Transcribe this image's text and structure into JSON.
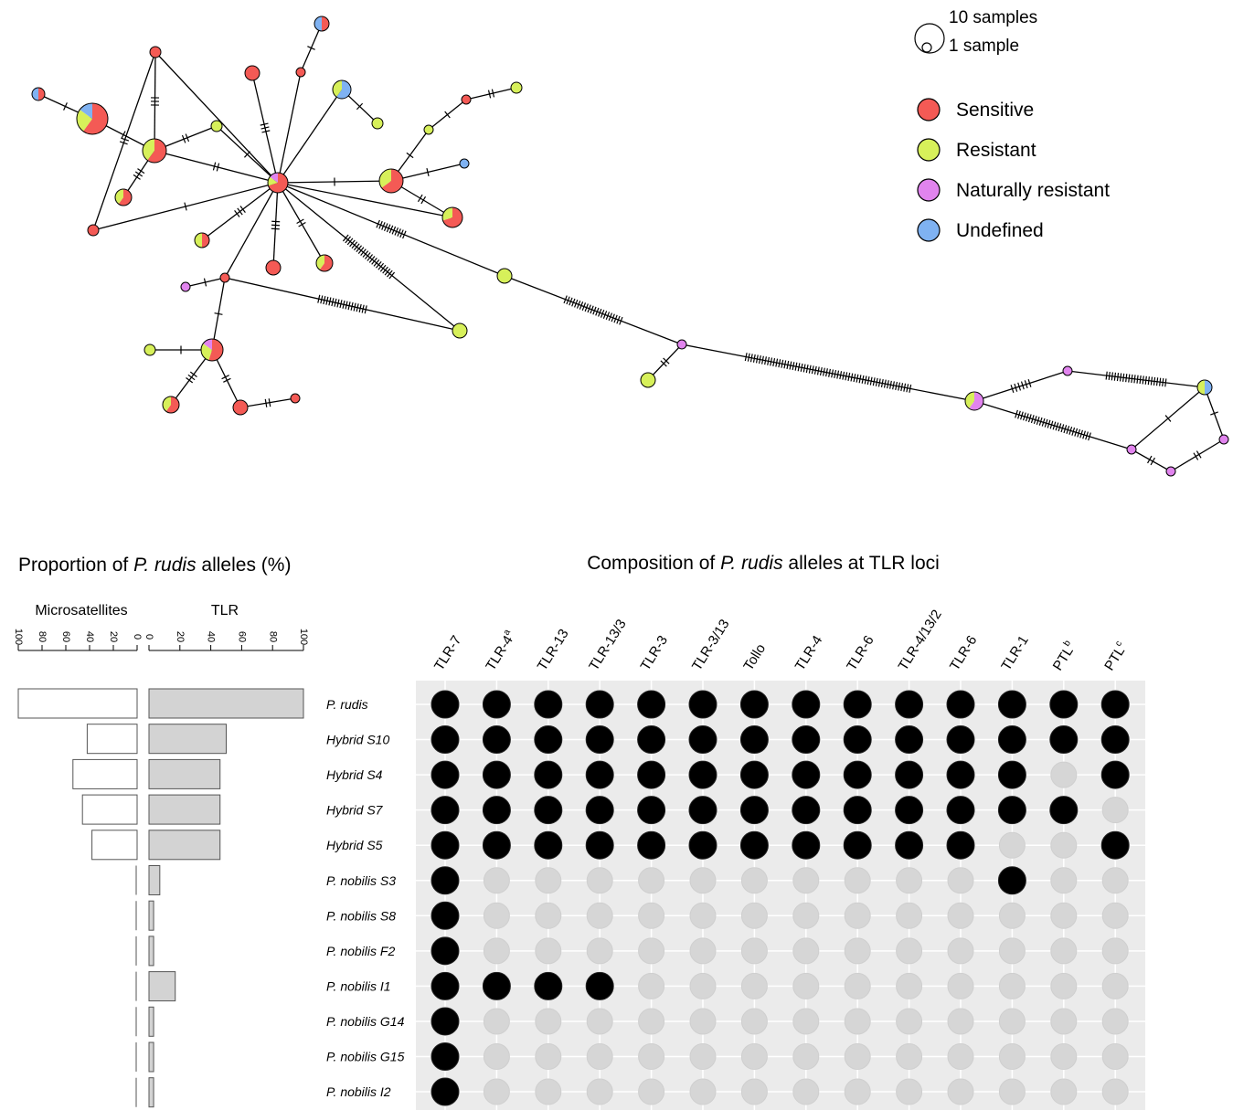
{
  "network": {
    "legend_size": {
      "big": "10 samples",
      "small": "1 sample"
    },
    "legend_items": [
      {
        "label": "Sensitive",
        "color": "#f45a55"
      },
      {
        "label": "Resistant",
        "color": "#d7f05a"
      },
      {
        "label": "Naturally resistant",
        "color": "#e184ee"
      },
      {
        "label": "Undefined",
        "color": "#7fb2f2"
      }
    ]
  },
  "chart_data": [
    {
      "type": "bar",
      "title": "Proportion of P. rudis alleles (%)",
      "title_prefix": "Proportion of ",
      "title_species": "P. rudis",
      "title_suffix": " alleles (%)",
      "categories": [
        "P. rudis",
        "Hybrid S10",
        "Hybrid S4",
        "Hybrid S7",
        "Hybrid S5",
        "P. nobilis S3",
        "P. nobilis S8",
        "P. nobilis F2",
        "P. nobilis I1",
        "P. nobilis G14",
        "P. nobilis G15",
        "P. nobilis I2"
      ],
      "panels": [
        {
          "name": "Microsatellites",
          "direction": "reversed",
          "ticks": [
            "100",
            "80",
            "60",
            "40",
            "20",
            "0"
          ],
          "values": [
            100,
            42,
            54,
            46,
            38,
            0,
            0,
            0,
            0,
            0,
            0,
            0
          ]
        },
        {
          "name": "TLR",
          "ticks": [
            "0",
            "20",
            "40",
            "60",
            "80",
            "100"
          ],
          "values": [
            100,
            50,
            46,
            46,
            46,
            7,
            3,
            3,
            17,
            3,
            3,
            3
          ]
        }
      ],
      "ylim": [
        0,
        100
      ]
    },
    {
      "type": "heatmap",
      "title": "Composition of P. rudis alleles at TLR loci",
      "title_prefix": "Composition of ",
      "title_species": "P. rudis",
      "title_suffix": " alleles at TLR loci",
      "columns": [
        {
          "label": "TLR-7",
          "sup": ""
        },
        {
          "label": "TLR-4",
          "sup": "a"
        },
        {
          "label": "TLR-13",
          "sup": ""
        },
        {
          "label": "TLR-13/3",
          "sup": ""
        },
        {
          "label": "TLR-3",
          "sup": ""
        },
        {
          "label": "TLR-3/13",
          "sup": ""
        },
        {
          "label": "Tollo",
          "sup": ""
        },
        {
          "label": "TLR-4",
          "sup": ""
        },
        {
          "label": "TLR-6",
          "sup": ""
        },
        {
          "label": "TLR-4/13/2",
          "sup": ""
        },
        {
          "label": "TLR-6",
          "sup": ""
        },
        {
          "label": "TLR-1",
          "sup": ""
        },
        {
          "label": "PTL",
          "sup": "b"
        },
        {
          "label": "PTL",
          "sup": "c"
        }
      ],
      "rows": [
        "P. rudis",
        "Hybrid S10",
        "Hybrid S4",
        "Hybrid S7",
        "Hybrid S5",
        "P. nobilis S3",
        "P. nobilis S8",
        "P. nobilis F2",
        "P. nobilis I1",
        "P. nobilis G14",
        "P. nobilis G15",
        "P. nobilis I2"
      ],
      "present": [
        [
          1,
          1,
          1,
          1,
          1,
          1,
          1,
          1,
          1,
          1,
          1,
          1,
          1,
          1
        ],
        [
          1,
          1,
          1,
          1,
          1,
          1,
          1,
          1,
          1,
          1,
          1,
          1,
          1,
          1
        ],
        [
          1,
          1,
          1,
          1,
          1,
          1,
          1,
          1,
          1,
          1,
          1,
          1,
          0,
          1
        ],
        [
          1,
          1,
          1,
          1,
          1,
          1,
          1,
          1,
          1,
          1,
          1,
          1,
          1,
          0
        ],
        [
          1,
          1,
          1,
          1,
          1,
          1,
          1,
          1,
          1,
          1,
          1,
          0,
          0,
          1
        ],
        [
          1,
          0,
          0,
          0,
          0,
          0,
          0,
          0,
          0,
          0,
          0,
          1,
          0,
          0
        ],
        [
          1,
          0,
          0,
          0,
          0,
          0,
          0,
          0,
          0,
          0,
          0,
          0,
          0,
          0
        ],
        [
          1,
          0,
          0,
          0,
          0,
          0,
          0,
          0,
          0,
          0,
          0,
          0,
          0,
          0
        ],
        [
          1,
          1,
          1,
          1,
          0,
          0,
          0,
          0,
          0,
          0,
          0,
          0,
          0,
          0
        ],
        [
          1,
          0,
          0,
          0,
          0,
          0,
          0,
          0,
          0,
          0,
          0,
          0,
          0,
          0
        ],
        [
          1,
          0,
          0,
          0,
          0,
          0,
          0,
          0,
          0,
          0,
          0,
          0,
          0,
          0
        ],
        [
          1,
          0,
          0,
          0,
          0,
          0,
          0,
          0,
          0,
          0,
          0,
          0,
          0,
          0
        ]
      ]
    }
  ]
}
